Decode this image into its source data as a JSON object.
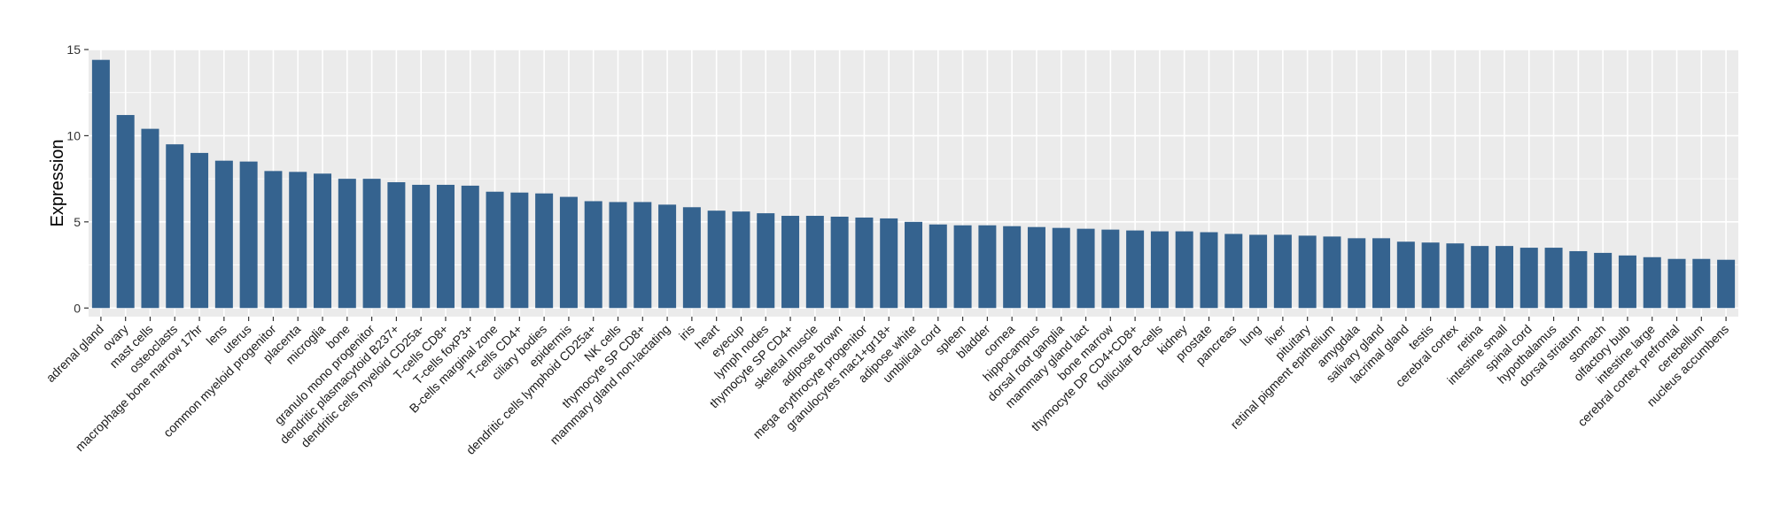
{
  "chart_data": {
    "type": "bar",
    "title": "",
    "xlabel": "",
    "ylabel": "Expression",
    "ylim": [
      -0.5,
      15
    ],
    "yticks": [
      0,
      5,
      10,
      15
    ],
    "grid": true,
    "bar_color": "#35638f",
    "panel_color": "#ebebeb",
    "categories": [
      "adrenal gland",
      "ovary",
      "mast cells",
      "osteoclasts",
      "macrophage bone marrow 17hr",
      "lens",
      "uterus",
      "common myeloid progenitor",
      "placenta",
      "microglia",
      "bone",
      "granulo mono progenitor",
      "dendritic plasmacytoid B237+",
      "dendritic cells myeloid CD25a-",
      "T-cells CD8+",
      "T-cells foxP3+",
      "B-cells marginal zone",
      "T-cells CD4+",
      "ciliary bodies",
      "epidermis",
      "dendritic cells lymphoid CD25a+",
      "NK cells",
      "thymocyte SP CD8+",
      "mammary gland non-lactating",
      "iris",
      "heart",
      "eyecup",
      "lymph nodes",
      "thymocyte SP CD4+",
      "skeletal muscle",
      "adipose brown",
      "mega erythrocyte progenitor",
      "granulocytes mac1+gr18+",
      "adipose white",
      "umbilical cord",
      "spleen",
      "bladder",
      "cornea",
      "hippocampus",
      "dorsal root ganglia",
      "mammary gland lact",
      "bone marrow",
      "thymocyte DP CD4+CD8+",
      "follicular B-cells",
      "kidney",
      "prostate",
      "pancreas",
      "lung",
      "liver",
      "pituitary",
      "retinal pigment epithelium",
      "amygdala",
      "salivary gland",
      "lacrimal gland",
      "testis",
      "cerebral cortex",
      "retina",
      "intestine small",
      "spinal cord",
      "hypothalamus",
      "dorsal striatum",
      "stomach",
      "olfactory bulb",
      "intestine large",
      "cerebral cortex prefrontal",
      "cerebellum",
      "nucleus accumbens"
    ],
    "values": [
      14.4,
      11.2,
      10.4,
      9.5,
      9.0,
      8.55,
      8.5,
      7.95,
      7.9,
      7.8,
      7.5,
      7.5,
      7.3,
      7.15,
      7.15,
      7.1,
      6.75,
      6.7,
      6.65,
      6.45,
      6.2,
      6.15,
      6.15,
      6.0,
      5.85,
      5.65,
      5.6,
      5.5,
      5.35,
      5.35,
      5.3,
      5.25,
      5.2,
      5.0,
      4.85,
      4.8,
      4.8,
      4.75,
      4.7,
      4.65,
      4.6,
      4.55,
      4.5,
      4.45,
      4.45,
      4.4,
      4.3,
      4.25,
      4.25,
      4.2,
      4.15,
      4.05,
      4.05,
      3.85,
      3.8,
      3.75,
      3.6,
      3.6,
      3.5,
      3.5,
      3.3,
      3.2,
      3.05,
      2.95,
      2.85,
      2.85,
      2.8
    ]
  }
}
